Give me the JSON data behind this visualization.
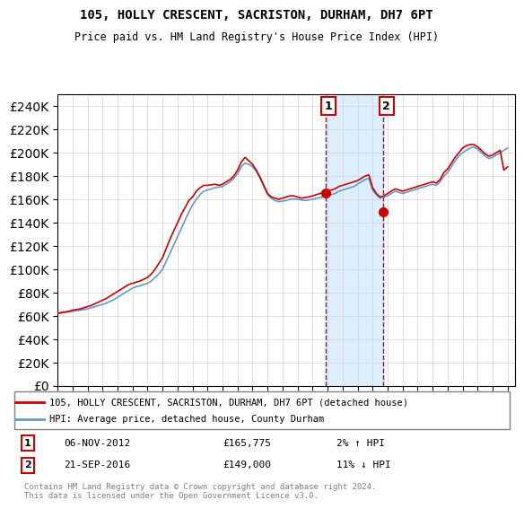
{
  "title": "105, HOLLY CRESCENT, SACRISTON, DURHAM, DH7 6PT",
  "subtitle": "Price paid vs. HM Land Registry's House Price Index (HPI)",
  "ylabel_ticks": [
    "£0",
    "£20K",
    "£40K",
    "£60K",
    "£80K",
    "£100K",
    "£120K",
    "£140K",
    "£160K",
    "£180K",
    "£200K",
    "£220K",
    "£240K"
  ],
  "ylim": [
    0,
    250000
  ],
  "yticks": [
    0,
    20000,
    40000,
    60000,
    80000,
    100000,
    120000,
    140000,
    160000,
    180000,
    200000,
    220000,
    240000
  ],
  "xlim_start": 1995.0,
  "xlim_end": 2025.5,
  "legend_line1": "105, HOLLY CRESCENT, SACRISTON, DURHAM, DH7 6PT (detached house)",
  "legend_line2": "HPI: Average price, detached house, County Durham",
  "annotation1_date": "06-NOV-2012",
  "annotation1_price": "£165,775",
  "annotation1_hpi": "2% ↑ HPI",
  "annotation2_date": "21-SEP-2016",
  "annotation2_price": "£149,000",
  "annotation2_hpi": "11% ↓ HPI",
  "sale1_x": 2012.85,
  "sale1_y": 165775,
  "sale2_x": 2016.72,
  "sale2_y": 149000,
  "red_color": "#cc0000",
  "blue_color": "#6699cc",
  "shade_color": "#ddeeff",
  "copyright_text": "Contains HM Land Registry data © Crown copyright and database right 2024.\nThis data is licensed under the Open Government Licence v3.0.",
  "hpi_x": [
    1995.0,
    1995.25,
    1995.5,
    1995.75,
    1996.0,
    1996.25,
    1996.5,
    1996.75,
    1997.0,
    1997.25,
    1997.5,
    1997.75,
    1998.0,
    1998.25,
    1998.5,
    1998.75,
    1999.0,
    1999.25,
    1999.5,
    1999.75,
    2000.0,
    2000.25,
    2000.5,
    2000.75,
    2001.0,
    2001.25,
    2001.5,
    2001.75,
    2002.0,
    2002.25,
    2002.5,
    2002.75,
    2003.0,
    2003.25,
    2003.5,
    2003.75,
    2004.0,
    2004.25,
    2004.5,
    2004.75,
    2005.0,
    2005.25,
    2005.5,
    2005.75,
    2006.0,
    2006.25,
    2006.5,
    2006.75,
    2007.0,
    2007.25,
    2007.5,
    2007.75,
    2008.0,
    2008.25,
    2008.5,
    2008.75,
    2009.0,
    2009.25,
    2009.5,
    2009.75,
    2010.0,
    2010.25,
    2010.5,
    2010.75,
    2011.0,
    2011.25,
    2011.5,
    2011.75,
    2012.0,
    2012.25,
    2012.5,
    2012.75,
    2013.0,
    2013.25,
    2013.5,
    2013.75,
    2014.0,
    2014.25,
    2014.5,
    2014.75,
    2015.0,
    2015.25,
    2015.5,
    2015.75,
    2016.0,
    2016.25,
    2016.5,
    2016.75,
    2017.0,
    2017.25,
    2017.5,
    2017.75,
    2018.0,
    2018.25,
    2018.5,
    2018.75,
    2019.0,
    2019.25,
    2019.5,
    2019.75,
    2020.0,
    2020.25,
    2020.5,
    2020.75,
    2021.0,
    2021.25,
    2021.5,
    2021.75,
    2022.0,
    2022.25,
    2022.5,
    2022.75,
    2023.0,
    2023.25,
    2023.5,
    2023.75,
    2024.0,
    2024.25,
    2024.5,
    2024.75,
    2025.0
  ],
  "hpi_y": [
    62000,
    62500,
    63000,
    63500,
    64000,
    64500,
    65000,
    65500,
    66000,
    67000,
    68000,
    69000,
    70000,
    71000,
    72500,
    74000,
    76000,
    78000,
    80000,
    82000,
    84000,
    85000,
    86000,
    87000,
    88000,
    90000,
    93000,
    96000,
    100000,
    107000,
    114000,
    121000,
    128000,
    135000,
    142000,
    149000,
    155000,
    160000,
    164000,
    167000,
    168000,
    169000,
    170000,
    170500,
    171000,
    173000,
    175000,
    178000,
    182000,
    188000,
    191000,
    190000,
    188000,
    184000,
    178000,
    171000,
    164000,
    161000,
    159000,
    158000,
    158500,
    159000,
    160000,
    160500,
    160000,
    159500,
    159000,
    159500,
    160000,
    161000,
    161500,
    162000,
    163000,
    164000,
    165000,
    167000,
    168000,
    169000,
    170000,
    171000,
    173000,
    175000,
    177000,
    178000,
    168000,
    164000,
    161000,
    162000,
    163000,
    165000,
    167000,
    166000,
    165000,
    166000,
    167000,
    168000,
    169000,
    170000,
    171000,
    172000,
    173000,
    172000,
    175000,
    180000,
    183000,
    188000,
    193000,
    197000,
    200000,
    202000,
    204000,
    205000,
    203000,
    200000,
    197000,
    195000,
    196000,
    198000,
    200000,
    202000,
    204000
  ],
  "price_x": [
    1995.0,
    1995.25,
    1995.5,
    1995.75,
    1996.0,
    1996.25,
    1996.5,
    1996.75,
    1997.0,
    1997.25,
    1997.5,
    1997.75,
    1998.0,
    1998.25,
    1998.5,
    1998.75,
    1999.0,
    1999.25,
    1999.5,
    1999.75,
    2000.0,
    2000.25,
    2000.5,
    2000.75,
    2001.0,
    2001.25,
    2001.5,
    2001.75,
    2002.0,
    2002.25,
    2002.5,
    2002.75,
    2003.0,
    2003.25,
    2003.5,
    2003.75,
    2004.0,
    2004.25,
    2004.5,
    2004.75,
    2005.0,
    2005.25,
    2005.5,
    2005.75,
    2006.0,
    2006.25,
    2006.5,
    2006.75,
    2007.0,
    2007.25,
    2007.5,
    2007.75,
    2008.0,
    2008.25,
    2008.5,
    2008.75,
    2009.0,
    2009.25,
    2009.5,
    2009.75,
    2010.0,
    2010.25,
    2010.5,
    2010.75,
    2011.0,
    2011.25,
    2011.5,
    2011.75,
    2012.0,
    2012.25,
    2012.5,
    2012.75,
    2013.0,
    2013.25,
    2013.5,
    2013.75,
    2014.0,
    2014.25,
    2014.5,
    2014.75,
    2015.0,
    2015.25,
    2015.5,
    2015.75,
    2016.0,
    2016.25,
    2016.5,
    2016.75,
    2017.0,
    2017.25,
    2017.5,
    2017.75,
    2018.0,
    2018.25,
    2018.5,
    2018.75,
    2019.0,
    2019.25,
    2019.5,
    2019.75,
    2020.0,
    2020.25,
    2020.5,
    2020.75,
    2021.0,
    2021.25,
    2021.5,
    2021.75,
    2022.0,
    2022.25,
    2022.5,
    2022.75,
    2023.0,
    2023.25,
    2023.5,
    2023.75,
    2024.0,
    2024.25,
    2024.5,
    2024.75,
    2025.0
  ],
  "price_y": [
    62000,
    63000,
    63500,
    64000,
    65000,
    65500,
    66000,
    67000,
    68000,
    69000,
    70500,
    72000,
    73500,
    75000,
    77000,
    79000,
    81000,
    83000,
    85000,
    87000,
    88000,
    89000,
    90000,
    91500,
    93000,
    96000,
    100000,
    105000,
    110000,
    118000,
    126000,
    133000,
    140000,
    147000,
    153000,
    159000,
    162000,
    167000,
    170000,
    172000,
    172000,
    172500,
    173000,
    172000,
    173000,
    175000,
    177000,
    180000,
    185000,
    192000,
    196000,
    193000,
    190000,
    185000,
    179000,
    172000,
    165000,
    162000,
    161000,
    160000,
    161000,
    162000,
    163000,
    163000,
    162000,
    161000,
    161500,
    162000,
    163000,
    164000,
    165000,
    166500,
    167000,
    168000,
    169000,
    171000,
    172000,
    173000,
    174000,
    175000,
    176000,
    178000,
    180000,
    181000,
    170000,
    165000,
    162000,
    163000,
    165000,
    167000,
    169000,
    168000,
    167000,
    168000,
    169000,
    170000,
    171000,
    172000,
    173000,
    174000,
    175000,
    174000,
    177000,
    183000,
    186000,
    191000,
    196000,
    200000,
    204000,
    206000,
    207000,
    207000,
    205000,
    202000,
    199000,
    197000,
    198000,
    200000,
    202000,
    185000,
    188000
  ]
}
